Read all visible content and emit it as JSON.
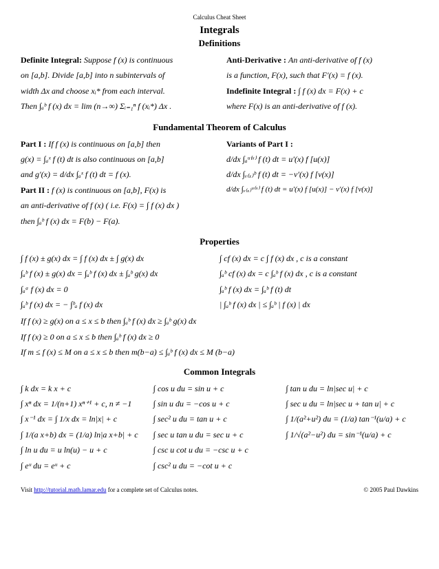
{
  "header": "Calculus Cheat Sheet",
  "title": "Integrals",
  "sections": {
    "definitions": {
      "heading": "Definitions",
      "left_label": "Definite Integral:",
      "left_1": "Suppose f (x) is continuous",
      "left_2": "on [a,b]. Divide [a,b] into n subintervals of",
      "left_3": "width Δx and choose xᵢ* from each interval.",
      "left_4": "Then ∫ₐᵇ f (x) dx = lim (n→∞) Σᵢ₌₁ⁿ f (xᵢ*) Δx .",
      "right_label": "Anti-Derivative :",
      "right_1": "An anti-derivative of f (x)",
      "right_2": "is a function, F(x), such that F′(x) = f (x).",
      "right_label2": "Indefinite Integral :",
      "right_3": "∫ f (x) dx = F(x) + c",
      "right_4": "where F(x) is an anti-derivative of f (x)."
    },
    "ftc": {
      "heading": "Fundamental Theorem of Calculus",
      "p1_label": "Part I :",
      "p1_1": "If f (x) is continuous on [a,b] then",
      "p1_2": "g(x) = ∫ₐˣ f (t) dt  is also continuous on [a,b]",
      "p1_3": "and  g′(x) = d/dx ∫ₐˣ f (t) dt = f (x).",
      "p2_label": "Part II :",
      "p2_1": "f (x) is continuous on [a,b], F(x) is",
      "p2_2": "an anti-derivative of f (x) ( i.e.  F(x) = ∫ f (x) dx )",
      "p2_3": "then ∫ₐᵇ f (x) dx = F(b) − F(a).",
      "var_label": "Variants of Part I :",
      "var_1": "d/dx ∫ₐᵘ⁽ˣ⁾ f (t) dt = u′(x) f [u(x)]",
      "var_2": "d/dx ∫ᵥ₍ₓ₎ᵇ f (t) dt = −v′(x) f [v(x)]",
      "var_3": "d/dx ∫ᵥ₍ₓ₎ᵘ⁽ˣ⁾ f (t) dt = u′(x) f [u(x)] − v′(x) f [v(x)]"
    },
    "properties": {
      "heading": "Properties",
      "l1": "∫ f (x) ± g(x) dx = ∫ f (x) dx ± ∫ g(x) dx",
      "l2": "∫ₐᵇ f (x) ± g(x) dx = ∫ₐᵇ f (x) dx ± ∫ₐᵇ g(x) dx",
      "l3": "∫ₐᵃ f (x) dx = 0",
      "l4": "∫ₐᵇ f (x) dx = − ∫ᵇₐ f (x) dx",
      "r1": "∫ cf (x) dx = c ∫ f (x) dx ,  c is a constant",
      "r2": "∫ₐᵇ cf (x) dx = c ∫ₐᵇ f (x) dx ,  c is a constant",
      "r3": "∫ₐᵇ f (x) dx = ∫ₐᵇ f (t) dt",
      "r4": "| ∫ₐᵇ f (x) dx | ≤ ∫ₐᵇ | f (x) | dx",
      "b1": "If f (x) ≥ g(x) on a ≤ x ≤ b then ∫ₐᵇ f (x) dx ≥ ∫ₐᵇ g(x) dx",
      "b2": "If f (x) ≥ 0  on  a ≤ x ≤ b  then  ∫ₐᵇ f (x) dx ≥ 0",
      "b3": "If m ≤ f (x) ≤ M on a ≤ x ≤ b  then  m(b−a) ≤ ∫ₐᵇ f (x) dx ≤ M (b−a)"
    },
    "common": {
      "heading": "Common Integrals",
      "c1_1": "∫ k dx = k x + c",
      "c1_2": "∫ xⁿ dx = 1/(n+1) xⁿ⁺¹ + c, n ≠ −1",
      "c1_3": "∫ x⁻¹ dx = ∫ 1/x dx = ln|x| + c",
      "c1_4": "∫ 1/(a x+b) dx = (1/a) ln|a x+b| + c",
      "c1_5": "∫ ln u du = u ln(u) − u + c",
      "c1_6": "∫ eᵘ du = eᵘ + c",
      "c2_1": "∫ cos u du = sin u + c",
      "c2_2": "∫ sin u du = −cos u + c",
      "c2_3": "∫ sec² u du = tan u + c",
      "c2_4": "∫ sec u tan u du = sec u + c",
      "c2_5": "∫ csc u cot u du = −csc u + c",
      "c2_6": "∫ csc² u du = −cot u + c",
      "c3_1": "∫ tan u du = ln|sec u| + c",
      "c3_2": "∫ sec u du = ln|sec u + tan u| + c",
      "c3_3": "∫ 1/(a²+u²) du = (1/a) tan⁻¹(u/a) + c",
      "c3_4": "∫ 1/√(a²−u²) du = sin⁻¹(u/a) + c"
    }
  },
  "footer": {
    "visit": "Visit ",
    "url": "http://tutorial.math.lamar.edu",
    "after": " for a complete set of Calculus notes.",
    "copyright": "© 2005 Paul Dawkins"
  }
}
